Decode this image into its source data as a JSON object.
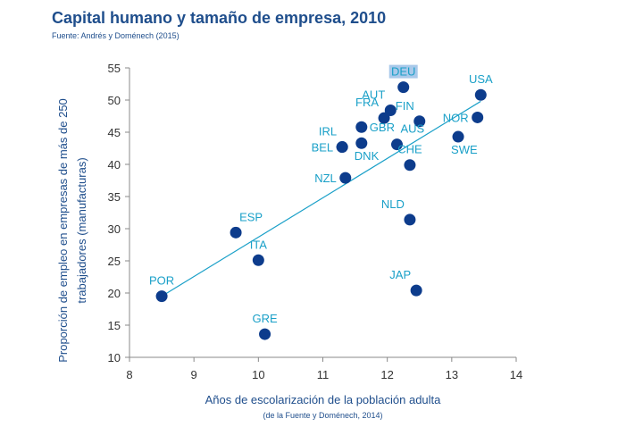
{
  "header": {
    "title": "Capital humano y tamaño de empresa, 2010",
    "source": "Fuente: Andrés y Doménech (2015)"
  },
  "chart_data": {
    "type": "scatter",
    "title": "Capital humano y tamaño de empresa, 2010",
    "xlabel": "Años de escolarización de la población adulta",
    "xlabel_sub": "(de la Fuente y Doménech, 2014)",
    "ylabel_line1": "Proporción de empleo en empresas de más de 250",
    "ylabel_line2": "trabajadores (manufacturas)",
    "xlim": [
      8,
      14
    ],
    "ylim": [
      10,
      55
    ],
    "xticks": [
      8,
      9,
      10,
      11,
      12,
      13,
      14
    ],
    "yticks": [
      10,
      15,
      20,
      25,
      30,
      35,
      40,
      45,
      50,
      55
    ],
    "grid": false,
    "point_color": "#0d3c8c",
    "label_color": "#1aa0c8",
    "highlight_color": "#b5135e",
    "points": [
      {
        "label": "DEU",
        "x": 12.25,
        "y": 52.0,
        "label_pos": "top",
        "boxed": true
      },
      {
        "label": "USA",
        "x": 13.45,
        "y": 50.8,
        "label_pos": "top"
      },
      {
        "label": "AUT",
        "x": 12.05,
        "y": 48.4,
        "label_pos": "top-left"
      },
      {
        "label": "FIN",
        "x": 12.5,
        "y": 46.7,
        "label_pos": "top-left"
      },
      {
        "label": "FRA",
        "x": 11.95,
        "y": 47.2,
        "label_pos": "top-left"
      },
      {
        "label": "NOR",
        "x": 13.4,
        "y": 47.3,
        "label_pos": "left"
      },
      {
        "label": "GBR",
        "x": 11.6,
        "y": 45.8,
        "label_pos": "right"
      },
      {
        "label": "IRL",
        "x": 11.3,
        "y": 42.7,
        "label_pos": "top-left"
      },
      {
        "label": "BEL",
        "x": 11.3,
        "y": 42.7,
        "label_pos": "left"
      },
      {
        "label": "DNK",
        "x": 11.6,
        "y": 43.3,
        "label_pos": "bottom-right"
      },
      {
        "label": "AUS",
        "x": 12.15,
        "y": 43.1,
        "label_pos": "top-right"
      },
      {
        "label": "SWE",
        "x": 13.1,
        "y": 44.3,
        "label_pos": "bottom-right"
      },
      {
        "label": "CHE",
        "x": 12.35,
        "y": 39.9,
        "label_pos": "top"
      },
      {
        "label": "NZL",
        "x": 11.35,
        "y": 37.9,
        "label_pos": "left"
      },
      {
        "label": "NLD",
        "x": 12.35,
        "y": 31.4,
        "label_pos": "top-left"
      },
      {
        "label": "ESP",
        "x": 9.65,
        "y": 29.4,
        "label_pos": "top-right",
        "highlight": true
      },
      {
        "label": "ITA",
        "x": 10.0,
        "y": 25.1,
        "label_pos": "top"
      },
      {
        "label": "JAP",
        "x": 12.45,
        "y": 20.4,
        "label_pos": "top-left"
      },
      {
        "label": "POR",
        "x": 8.5,
        "y": 19.5,
        "label_pos": "top"
      },
      {
        "label": "GRE",
        "x": 10.1,
        "y": 13.6,
        "label_pos": "top"
      }
    ],
    "trendline": {
      "x": [
        8.5,
        13.45
      ],
      "y": [
        19.5,
        49.8
      ]
    }
  }
}
